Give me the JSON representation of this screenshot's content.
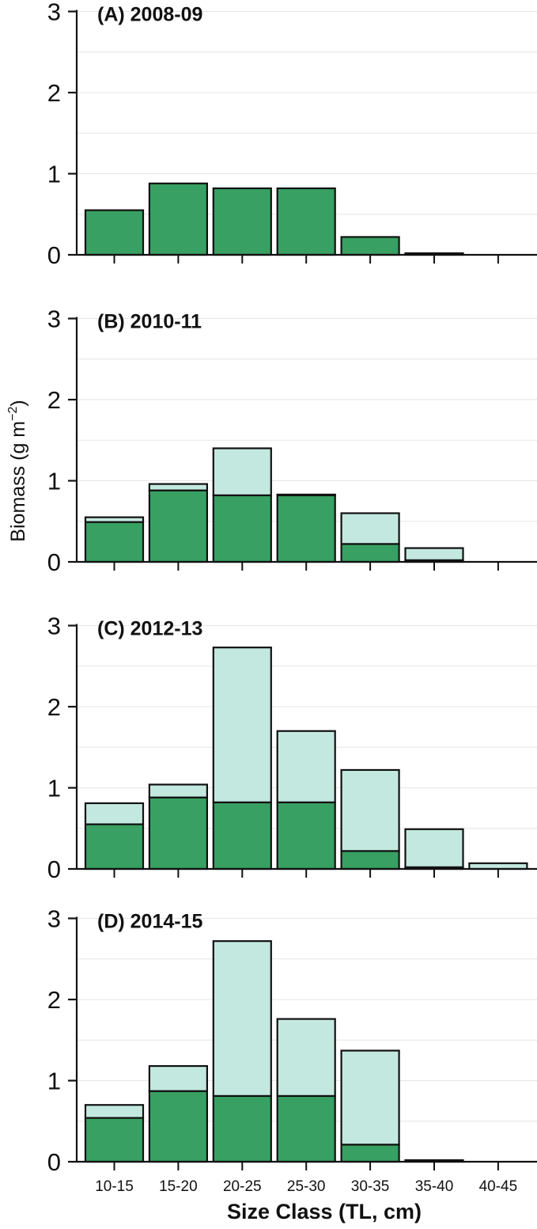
{
  "figure": {
    "ylabel_main": "Biomass (g m",
    "ylabel_sup": "−2",
    "ylabel_close": ")",
    "xlabel": "Size Class (TL, cm)"
  },
  "colors": {
    "base": "#38a062",
    "added": "#c3e8df",
    "stroke": "#111111",
    "grid": "#e6e6e6"
  },
  "chart_data": [
    {
      "type": "bar",
      "title": "(A) 2008-09",
      "categories": [
        "10-15",
        "15-20",
        "20-25",
        "25-30",
        "30-35",
        "35-40",
        "40-45"
      ],
      "series": [
        {
          "values": [
            0.55,
            0.88,
            0.82,
            0.82,
            0.22,
            0.02,
            0.0
          ]
        },
        {
          "values": [
            0.55,
            0.88,
            0.82,
            0.82,
            0.22,
            0.02,
            0.0
          ]
        }
      ],
      "ylim": [
        0,
        3
      ],
      "yticks": [
        "0",
        "1",
        "2",
        "3"
      ],
      "show_xtick_labels": false
    },
    {
      "type": "bar",
      "title": "(B) 2010-11",
      "categories": [
        "10-15",
        "15-20",
        "20-25",
        "25-30",
        "30-35",
        "35-40",
        "40-45"
      ],
      "series": [
        {
          "values": [
            0.49,
            0.88,
            0.82,
            0.82,
            0.22,
            0.02,
            0.0
          ]
        },
        {
          "values": [
            0.55,
            0.96,
            1.4,
            0.83,
            0.6,
            0.17,
            0.0
          ]
        }
      ],
      "ylim": [
        0,
        3
      ],
      "yticks": [
        "0",
        "1",
        "2",
        "3"
      ],
      "show_xtick_labels": false
    },
    {
      "type": "bar",
      "title": "(C) 2012-13",
      "categories": [
        "10-15",
        "15-20",
        "20-25",
        "25-30",
        "30-35",
        "35-40",
        "40-45"
      ],
      "series": [
        {
          "values": [
            0.55,
            0.88,
            0.82,
            0.82,
            0.22,
            0.02,
            0.0
          ]
        },
        {
          "values": [
            0.81,
            1.04,
            2.73,
            1.7,
            1.22,
            0.49,
            0.07
          ]
        }
      ],
      "ylim": [
        0,
        3
      ],
      "yticks": [
        "0",
        "1",
        "2",
        "3"
      ],
      "show_xtick_labels": false
    },
    {
      "type": "bar",
      "title": "(D) 2014-15",
      "categories": [
        "10-15",
        "15-20",
        "20-25",
        "25-30",
        "30-35",
        "35-40",
        "40-45"
      ],
      "series": [
        {
          "values": [
            0.54,
            0.87,
            0.81,
            0.81,
            0.21,
            0.02,
            0.0
          ]
        },
        {
          "values": [
            0.7,
            1.18,
            2.72,
            1.76,
            1.37,
            0.02,
            0.0
          ]
        }
      ],
      "ylim": [
        0,
        3
      ],
      "yticks": [
        "0",
        "1",
        "2",
        "3"
      ],
      "show_xtick_labels": true
    }
  ]
}
